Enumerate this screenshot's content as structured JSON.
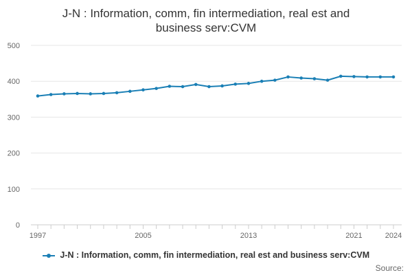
{
  "chart_data": {
    "type": "line",
    "title": "J-N : Information, comm, fin intermediation, real est and business serv:CVM",
    "title_lines": [
      "J-N : Information, comm, fin intermediation, real est and business serv:CVM"
    ],
    "ylim": [
      0,
      500
    ],
    "y_ticks": [
      0,
      100,
      200,
      300,
      400,
      500
    ],
    "x_ticks": [
      1997,
      2005,
      2013,
      2021,
      2024
    ],
    "xlim": [
      1997,
      2024
    ],
    "grid": true,
    "legend_position": "bottom",
    "series": [
      {
        "name": "J-N : Information, comm, fin intermediation, real est and business serv:CVM",
        "color": "#1a7fb5",
        "x": [
          1997,
          1998,
          1999,
          2000,
          2001,
          2002,
          2003,
          2004,
          2005,
          2006,
          2007,
          2008,
          2009,
          2010,
          2011,
          2012,
          2013,
          2014,
          2015,
          2016,
          2017,
          2018,
          2019,
          2020,
          2021,
          2022,
          2023,
          2024
        ],
        "values": [
          359,
          363,
          365,
          366,
          365,
          366,
          368,
          372,
          376,
          380,
          386,
          385,
          391,
          385,
          387,
          392,
          394,
          400,
          403,
          412,
          409,
          407,
          403,
          414,
          413,
          412,
          412,
          412
        ]
      }
    ]
  },
  "source_label": "Source:"
}
